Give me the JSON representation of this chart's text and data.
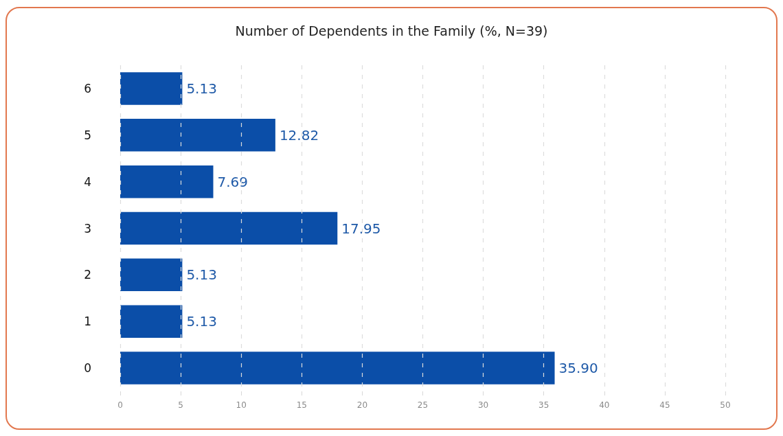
{
  "chart_data": {
    "type": "bar",
    "orientation": "horizontal",
    "title": "Number of Dependents in the Family (%, N=39)",
    "categories": [
      "6",
      "5",
      "4",
      "3",
      "2",
      "1",
      "0"
    ],
    "values": [
      5.13,
      12.82,
      7.69,
      17.95,
      5.13,
      5.13,
      35.9
    ],
    "value_labels": [
      "5.13",
      "12.82",
      "7.69",
      "17.95",
      "5.13",
      "5.13",
      "35.90"
    ],
    "color": "#0b4ea8",
    "xlim": [
      0,
      50
    ],
    "xticks": [
      0,
      5,
      10,
      15,
      20,
      25,
      30,
      35,
      40,
      45,
      50
    ],
    "grid": "x"
  }
}
